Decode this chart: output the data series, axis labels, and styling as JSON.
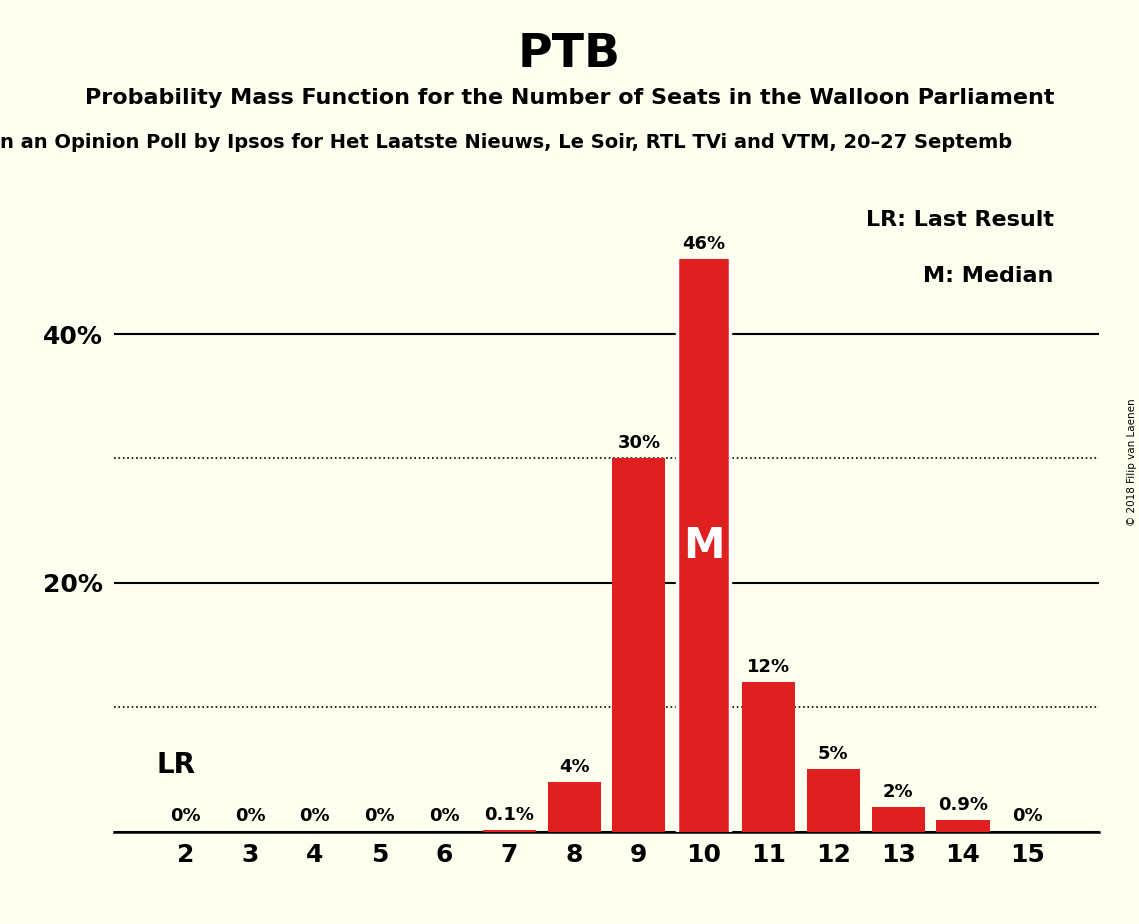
{
  "title": "PTB",
  "subtitle1": "Probability Mass Function for the Number of Seats in the Walloon Parliament",
  "subtitle2_display": "n an Opinion Poll by Ipsos for Het Laatste Nieuws, Le Soir, RTL TVi and VTM, 20–27 Septemb",
  "categories": [
    2,
    3,
    4,
    5,
    6,
    7,
    8,
    9,
    10,
    11,
    12,
    13,
    14,
    15
  ],
  "values": [
    0.0,
    0.0,
    0.0,
    0.0,
    0.0,
    0.001,
    0.04,
    0.3,
    0.46,
    0.12,
    0.05,
    0.02,
    0.009,
    0.0
  ],
  "bar_labels": [
    "0%",
    "0%",
    "0%",
    "0%",
    "0%",
    "0.1%",
    "4%",
    "30%",
    "46%",
    "12%",
    "5%",
    "2%",
    "0.9%",
    "0%"
  ],
  "bar_color": "#e02020",
  "background_color": "#fffff0",
  "median_seat": 10,
  "lr_seat": 10,
  "lr_label": "LR",
  "median_label": "M",
  "legend_lr": "LR: Last Result",
  "legend_m": "M: Median",
  "ylim": [
    0,
    0.52
  ],
  "solid_yticks": [
    0.0,
    0.2,
    0.4
  ],
  "solid_ytick_labels": [
    "",
    "20%",
    "40%"
  ],
  "dotted_yticks": [
    0.1,
    0.3
  ],
  "watermark": "© 2018 Filip van Laenen"
}
